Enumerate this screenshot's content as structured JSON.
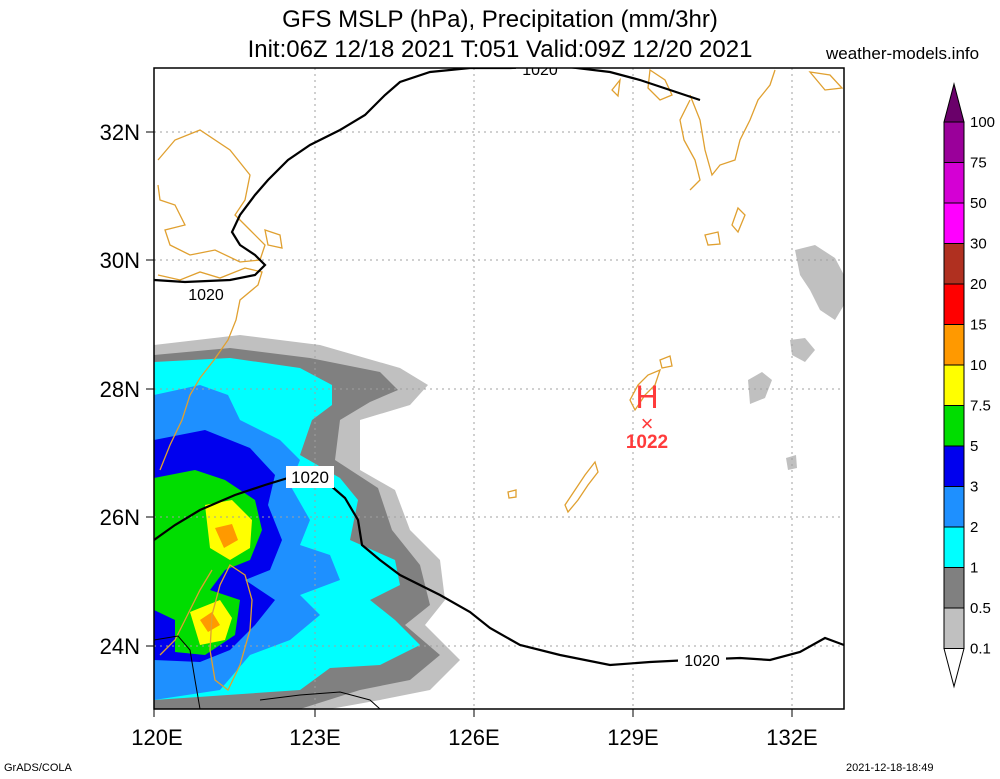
{
  "title_line1": "GFS MSLP (hPa), Precipitation (mm/3hr)",
  "title_line2": "Init:06Z 12/18 2021 T:051 Valid:09Z 12/20 2021",
  "site": "weather-models.info",
  "footer_left": "GrADS/COLA",
  "footer_right": "2021-12-18-18:49",
  "lat_ticks": [
    "32N",
    "30N",
    "28N",
    "26N",
    "24N"
  ],
  "lon_ticks": [
    "120E",
    "123E",
    "126E",
    "129E",
    "132E"
  ],
  "isobar_labels": [
    "1020",
    "1020",
    "1020",
    "1020"
  ],
  "high": {
    "letter": "H",
    "marker": "×",
    "value": "1022",
    "color": "#ff3b3b"
  },
  "legend": {
    "labels": [
      "100",
      "75",
      "50",
      "30",
      "20",
      "15",
      "10",
      "7.5",
      "5",
      "3",
      "2",
      "1",
      "0.5",
      "0.1"
    ],
    "colors": [
      "#6a006a",
      "#9a009a",
      "#d400d4",
      "#ff00ff",
      "#b03020",
      "#ff0000",
      "#ff9900",
      "#ffff00",
      "#00dd00",
      "#0000ee",
      "#1e90ff",
      "#00ffff",
      "#808080",
      "#c0c0c0",
      "#ffffff"
    ]
  },
  "colors": {
    "coast": "#e0a030",
    "grid": "#a0a0a0",
    "isobar": "#000000"
  }
}
